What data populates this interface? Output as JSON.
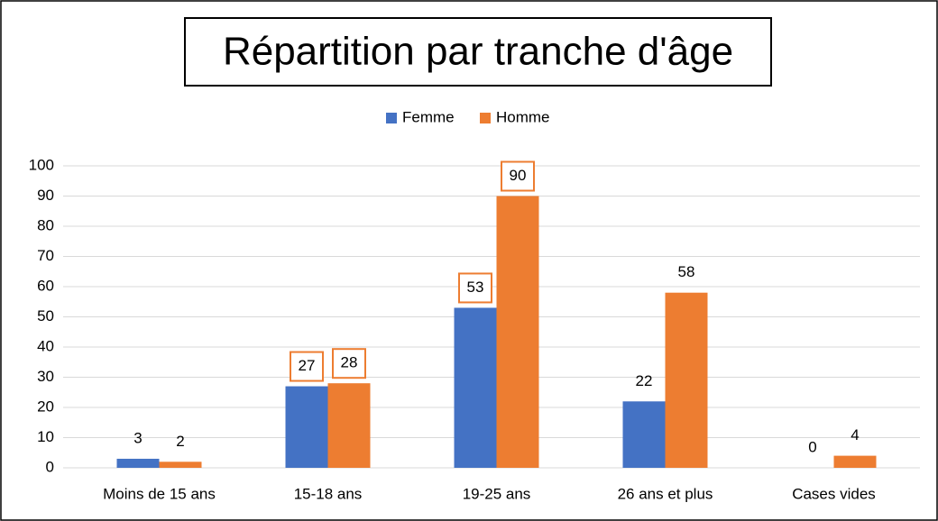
{
  "chart_data": {
    "type": "bar",
    "title": "Répartition par tranche d'âge",
    "categories": [
      "Moins de 15 ans",
      "15-18 ans",
      "19-25 ans",
      "26 ans et plus",
      "Cases vides"
    ],
    "series": [
      {
        "name": "Femme",
        "color": "#4472c4",
        "values": [
          3,
          27,
          53,
          22,
          0
        ],
        "boxed": [
          false,
          true,
          true,
          false,
          false
        ]
      },
      {
        "name": "Homme",
        "color": "#ed7d31",
        "values": [
          2,
          28,
          90,
          58,
          4
        ],
        "boxed": [
          false,
          true,
          true,
          false,
          false
        ]
      }
    ],
    "label_box_color": "#ed7d31",
    "ylim": [
      0,
      100
    ],
    "yticks": [
      0,
      10,
      20,
      30,
      40,
      50,
      60,
      70,
      80,
      90,
      100
    ],
    "grid": true,
    "legend": "top"
  }
}
